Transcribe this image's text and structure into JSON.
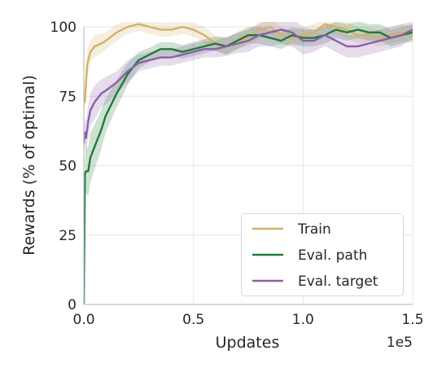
{
  "chart_data": {
    "type": "line",
    "xlabel": "Updates",
    "ylabel": "Rewards (% of optimal)",
    "x_multiplier_label": "1e5",
    "xlim": [
      0,
      1.5
    ],
    "ylim": [
      0,
      100
    ],
    "x_ticks": [
      {
        "value": 0.0,
        "label": "0.0"
      },
      {
        "value": 0.5,
        "label": "0.5"
      },
      {
        "value": 1.0,
        "label": "1.0"
      },
      {
        "value": 1.5,
        "label": "1.5"
      }
    ],
    "y_ticks": [
      {
        "value": 0,
        "label": "0"
      },
      {
        "value": 25,
        "label": "25"
      },
      {
        "value": 50,
        "label": "50"
      },
      {
        "value": 75,
        "label": "75"
      },
      {
        "value": 100,
        "label": "100"
      }
    ],
    "grid": true,
    "legend_position": "lower-right",
    "series": [
      {
        "name": "Train",
        "color": "#d4b06a",
        "x": [
          0,
          0.005,
          0.01,
          0.015,
          0.02,
          0.03,
          0.05,
          0.08,
          0.1,
          0.15,
          0.2,
          0.25,
          0.3,
          0.35,
          0.4,
          0.45,
          0.5,
          0.55,
          0.6,
          0.65,
          0.7,
          0.75,
          0.8,
          0.85,
          0.9,
          0.95,
          1.0,
          1.05,
          1.1,
          1.15,
          1.2,
          1.25,
          1.3,
          1.35,
          1.4,
          1.45,
          1.5
        ],
        "y": [
          74,
          73,
          80,
          86,
          88,
          91,
          93,
          94,
          95,
          98,
          100,
          101,
          100,
          99,
          99,
          100,
          99,
          97,
          94,
          93,
          95,
          96,
          99,
          100,
          97,
          96,
          97,
          98,
          101,
          100,
          99,
          97,
          97,
          96,
          97,
          98,
          97
        ],
        "band": [
          1.5,
          2,
          5,
          5,
          5,
          4,
          4,
          3.5,
          3,
          3,
          2.5,
          2.5,
          2.5,
          2.5,
          2.5,
          2.5,
          2.5,
          3,
          3,
          3,
          3,
          3,
          3,
          3,
          3,
          3,
          3,
          3,
          3,
          3,
          3,
          3,
          3,
          3,
          3,
          3,
          3
        ]
      },
      {
        "name": "Eval. path",
        "color": "#1e7b3a",
        "x": [
          0,
          0.005,
          0.01,
          0.02,
          0.03,
          0.05,
          0.08,
          0.1,
          0.15,
          0.2,
          0.25,
          0.3,
          0.35,
          0.4,
          0.45,
          0.5,
          0.55,
          0.6,
          0.65,
          0.7,
          0.75,
          0.8,
          0.85,
          0.9,
          0.95,
          1.0,
          1.05,
          1.1,
          1.15,
          1.2,
          1.25,
          1.3,
          1.35,
          1.4,
          1.45,
          1.5
        ],
        "y": [
          0,
          47,
          48,
          48,
          53,
          57,
          63,
          68,
          76,
          83,
          88,
          90,
          92,
          92,
          91,
          92,
          93,
          94,
          93,
          95,
          97,
          97,
          96,
          95,
          97,
          96,
          96,
          97,
          99,
          98,
          99,
          98,
          98,
          96,
          97,
          98
        ],
        "band": [
          0,
          6,
          8,
          9,
          9,
          8,
          7,
          6,
          5,
          4,
          3,
          2.5,
          2.5,
          2.5,
          2.5,
          2.5,
          2.5,
          2.5,
          3,
          3,
          3,
          3,
          3,
          3,
          3,
          3,
          3,
          3,
          3,
          3,
          3,
          3,
          3,
          3,
          3,
          3
        ]
      },
      {
        "name": "Eval. target",
        "color": "#8c5fa8",
        "x": [
          0,
          0.005,
          0.01,
          0.02,
          0.03,
          0.05,
          0.08,
          0.1,
          0.15,
          0.2,
          0.25,
          0.3,
          0.35,
          0.4,
          0.45,
          0.5,
          0.55,
          0.6,
          0.65,
          0.7,
          0.75,
          0.8,
          0.85,
          0.9,
          0.95,
          1.0,
          1.05,
          1.1,
          1.15,
          1.2,
          1.25,
          1.3,
          1.35,
          1.4,
          1.45,
          1.5
        ],
        "y": [
          58,
          62,
          60,
          66,
          70,
          73,
          76,
          77,
          80,
          84,
          87,
          88,
          89,
          89,
          90,
          91,
          92,
          92,
          93,
          94,
          95,
          97,
          98,
          99,
          98,
          95,
          95,
          97,
          95,
          93,
          93,
          94,
          95,
          96,
          97,
          99
        ],
        "band": [
          4,
          5,
          6,
          6,
          6,
          6,
          5,
          5,
          4,
          4,
          3,
          3,
          3,
          3,
          3,
          3,
          3,
          3,
          3.5,
          3.5,
          4,
          4,
          5,
          5,
          5,
          5,
          4,
          4,
          4,
          4,
          4,
          4,
          4,
          4,
          4,
          3
        ]
      }
    ]
  }
}
